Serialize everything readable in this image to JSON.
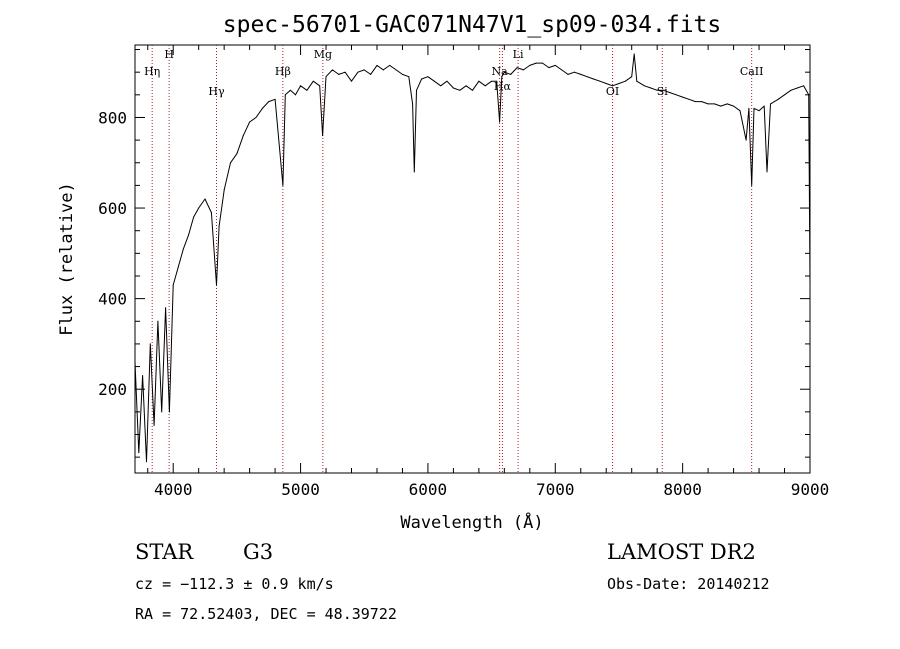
{
  "chart_data": {
    "type": "line",
    "title": "spec-56701-GAC071N47V1_sp09-034.fits",
    "xlabel": "Wavelength (Å)",
    "ylabel": "Flux (relative)",
    "xlim": [
      3700,
      9000
    ],
    "ylim": [
      15,
      960
    ],
    "xticks": [
      4000,
      5000,
      6000,
      7000,
      8000,
      9000
    ],
    "yticks": [
      200,
      400,
      600,
      800
    ],
    "grid": false,
    "series": [
      {
        "color": "#000000",
        "points": [
          [
            3700,
            260
          ],
          [
            3730,
            60
          ],
          [
            3760,
            230
          ],
          [
            3790,
            40
          ],
          [
            3820,
            300
          ],
          [
            3850,
            120
          ],
          [
            3880,
            350
          ],
          [
            3910,
            150
          ],
          [
            3940,
            380
          ],
          [
            3970,
            150
          ],
          [
            4000,
            430
          ],
          [
            4040,
            470
          ],
          [
            4080,
            510
          ],
          [
            4120,
            540
          ],
          [
            4160,
            580
          ],
          [
            4200,
            600
          ],
          [
            4250,
            620
          ],
          [
            4300,
            590
          ],
          [
            4340,
            430
          ],
          [
            4360,
            560
          ],
          [
            4400,
            640
          ],
          [
            4450,
            700
          ],
          [
            4500,
            720
          ],
          [
            4550,
            760
          ],
          [
            4600,
            790
          ],
          [
            4650,
            800
          ],
          [
            4700,
            820
          ],
          [
            4750,
            835
          ],
          [
            4800,
            840
          ],
          [
            4861,
            650
          ],
          [
            4880,
            850
          ],
          [
            4920,
            860
          ],
          [
            4960,
            850
          ],
          [
            5000,
            870
          ],
          [
            5050,
            860
          ],
          [
            5100,
            880
          ],
          [
            5150,
            870
          ],
          [
            5173,
            760
          ],
          [
            5200,
            890
          ],
          [
            5250,
            905
          ],
          [
            5300,
            895
          ],
          [
            5350,
            900
          ],
          [
            5400,
            880
          ],
          [
            5450,
            900
          ],
          [
            5500,
            905
          ],
          [
            5550,
            895
          ],
          [
            5600,
            915
          ],
          [
            5650,
            905
          ],
          [
            5700,
            915
          ],
          [
            5750,
            905
          ],
          [
            5800,
            895
          ],
          [
            5850,
            890
          ],
          [
            5880,
            830
          ],
          [
            5893,
            680
          ],
          [
            5910,
            860
          ],
          [
            5950,
            885
          ],
          [
            6000,
            890
          ],
          [
            6050,
            880
          ],
          [
            6100,
            870
          ],
          [
            6150,
            880
          ],
          [
            6200,
            865
          ],
          [
            6250,
            860
          ],
          [
            6300,
            870
          ],
          [
            6350,
            860
          ],
          [
            6400,
            880
          ],
          [
            6450,
            870
          ],
          [
            6500,
            880
          ],
          [
            6540,
            880
          ],
          [
            6563,
            790
          ],
          [
            6580,
            890
          ],
          [
            6600,
            900
          ],
          [
            6650,
            895
          ],
          [
            6700,
            910
          ],
          [
            6750,
            905
          ],
          [
            6800,
            915
          ],
          [
            6850,
            920
          ],
          [
            6900,
            920
          ],
          [
            6950,
            910
          ],
          [
            7000,
            915
          ],
          [
            7050,
            905
          ],
          [
            7100,
            895
          ],
          [
            7150,
            900
          ],
          [
            7200,
            895
          ],
          [
            7250,
            890
          ],
          [
            7300,
            885
          ],
          [
            7350,
            880
          ],
          [
            7400,
            875
          ],
          [
            7450,
            870
          ],
          [
            7500,
            875
          ],
          [
            7550,
            880
          ],
          [
            7600,
            890
          ],
          [
            7620,
            940
          ],
          [
            7640,
            880
          ],
          [
            7700,
            870
          ],
          [
            7750,
            865
          ],
          [
            7800,
            860
          ],
          [
            7850,
            860
          ],
          [
            7900,
            855
          ],
          [
            7950,
            850
          ],
          [
            8000,
            845
          ],
          [
            8050,
            840
          ],
          [
            8100,
            835
          ],
          [
            8150,
            835
          ],
          [
            8200,
            830
          ],
          [
            8250,
            830
          ],
          [
            8300,
            825
          ],
          [
            8350,
            830
          ],
          [
            8400,
            825
          ],
          [
            8450,
            815
          ],
          [
            8498,
            750
          ],
          [
            8520,
            820
          ],
          [
            8542,
            650
          ],
          [
            8560,
            820
          ],
          [
            8600,
            815
          ],
          [
            8640,
            825
          ],
          [
            8662,
            680
          ],
          [
            8690,
            830
          ],
          [
            8750,
            840
          ],
          [
            8800,
            850
          ],
          [
            8850,
            860
          ],
          [
            8900,
            865
          ],
          [
            8950,
            870
          ],
          [
            8990,
            850
          ],
          [
            9000,
            430
          ]
        ]
      }
    ],
    "line_markers": [
      {
        "label": "Hη",
        "x": 3835
      },
      {
        "label": "H",
        "x": 3968
      },
      {
        "label": "Hγ",
        "x": 4340
      },
      {
        "label": "Hβ",
        "x": 4861
      },
      {
        "label": "Mg",
        "x": 5175
      },
      {
        "label": "Na",
        "x": 6563
      },
      {
        "label": "Hα",
        "x": 6585
      },
      {
        "label": "Li",
        "x": 6708
      },
      {
        "label": "OI",
        "x": 7450
      },
      {
        "label": "Si",
        "x": 7840
      },
      {
        "label": "CaII",
        "x": 8542
      }
    ]
  },
  "info": {
    "object_class": "STAR",
    "subclass": "G3",
    "survey": "LAMOST DR2",
    "cz": "cz = −112.3 ± 0.9 km/s",
    "obs_date": "Obs-Date: 20140212",
    "coords": "RA =  72.52403, DEC =  48.39722"
  }
}
